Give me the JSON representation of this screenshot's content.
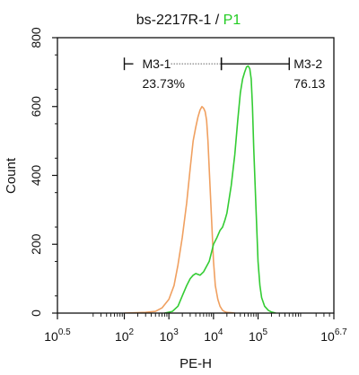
{
  "chart_data": {
    "type": "line",
    "title": {
      "prefix": "bs-2217R-1 / ",
      "highlight": "P1",
      "highlight_color": "#22cc22"
    },
    "xlabel": "PE-H",
    "ylabel": "Count",
    "x_scale": "log",
    "xlim": [
      3.1623,
      5011872
    ],
    "ylim": [
      0,
      800
    ],
    "x_ticks": [
      {
        "value": 3.1623,
        "base": "10",
        "exp": "0.5"
      },
      {
        "value": 100,
        "base": "10",
        "exp": "2"
      },
      {
        "value": 1000,
        "base": "10",
        "exp": "3"
      },
      {
        "value": 10000,
        "base": "10",
        "exp": "4"
      },
      {
        "value": 100000,
        "base": "10",
        "exp": "5"
      },
      {
        "value": 5011872,
        "base": "10",
        "exp": "6.7"
      }
    ],
    "y_ticks": [
      0,
      200,
      400,
      600,
      800
    ],
    "grid": false,
    "series": [
      {
        "color": "#f0a060",
        "x": [
          100,
          300,
          500,
          700,
          1000,
          1300,
          1600,
          2000,
          2500,
          3000,
          3500,
          4000,
          4500,
          5000,
          5500,
          6000,
          6500,
          7000,
          7500,
          8000,
          9000,
          10000,
          11000,
          12500,
          14000,
          16000,
          18000,
          20000,
          25000,
          30000
        ],
        "values": [
          0,
          2,
          5,
          15,
          40,
          80,
          140,
          220,
          320,
          420,
          500,
          540,
          570,
          590,
          600,
          595,
          585,
          560,
          500,
          420,
          280,
          150,
          80,
          40,
          20,
          8,
          4,
          2,
          1,
          0
        ]
      },
      {
        "color": "#33cc33",
        "x": [
          800,
          1200,
          1600,
          2000,
          2500,
          3000,
          3500,
          4000,
          5000,
          6000,
          8000,
          10000,
          12000,
          14000,
          16000,
          18000,
          20000,
          25000,
          30000,
          35000,
          40000,
          45000,
          50000,
          55000,
          60000,
          65000,
          70000,
          75000,
          80000,
          90000,
          100000,
          110000,
          120000,
          140000,
          170000,
          200000,
          250000
        ],
        "values": [
          0,
          5,
          20,
          50,
          80,
          100,
          110,
          115,
          110,
          120,
          150,
          200,
          220,
          240,
          250,
          270,
          290,
          370,
          460,
          560,
          640,
          680,
          700,
          715,
          718,
          710,
          680,
          600,
          480,
          300,
          150,
          80,
          45,
          20,
          8,
          3,
          0
        ]
      }
    ],
    "gates": [
      {
        "name": "M3-1",
        "percent": "23.73%",
        "x_start": 100,
        "x_end": 15000,
        "y": 724
      },
      {
        "name": "M3-2",
        "percent": "76.13",
        "x_start": 15000,
        "x_end": 500000,
        "y": 724
      }
    ]
  }
}
